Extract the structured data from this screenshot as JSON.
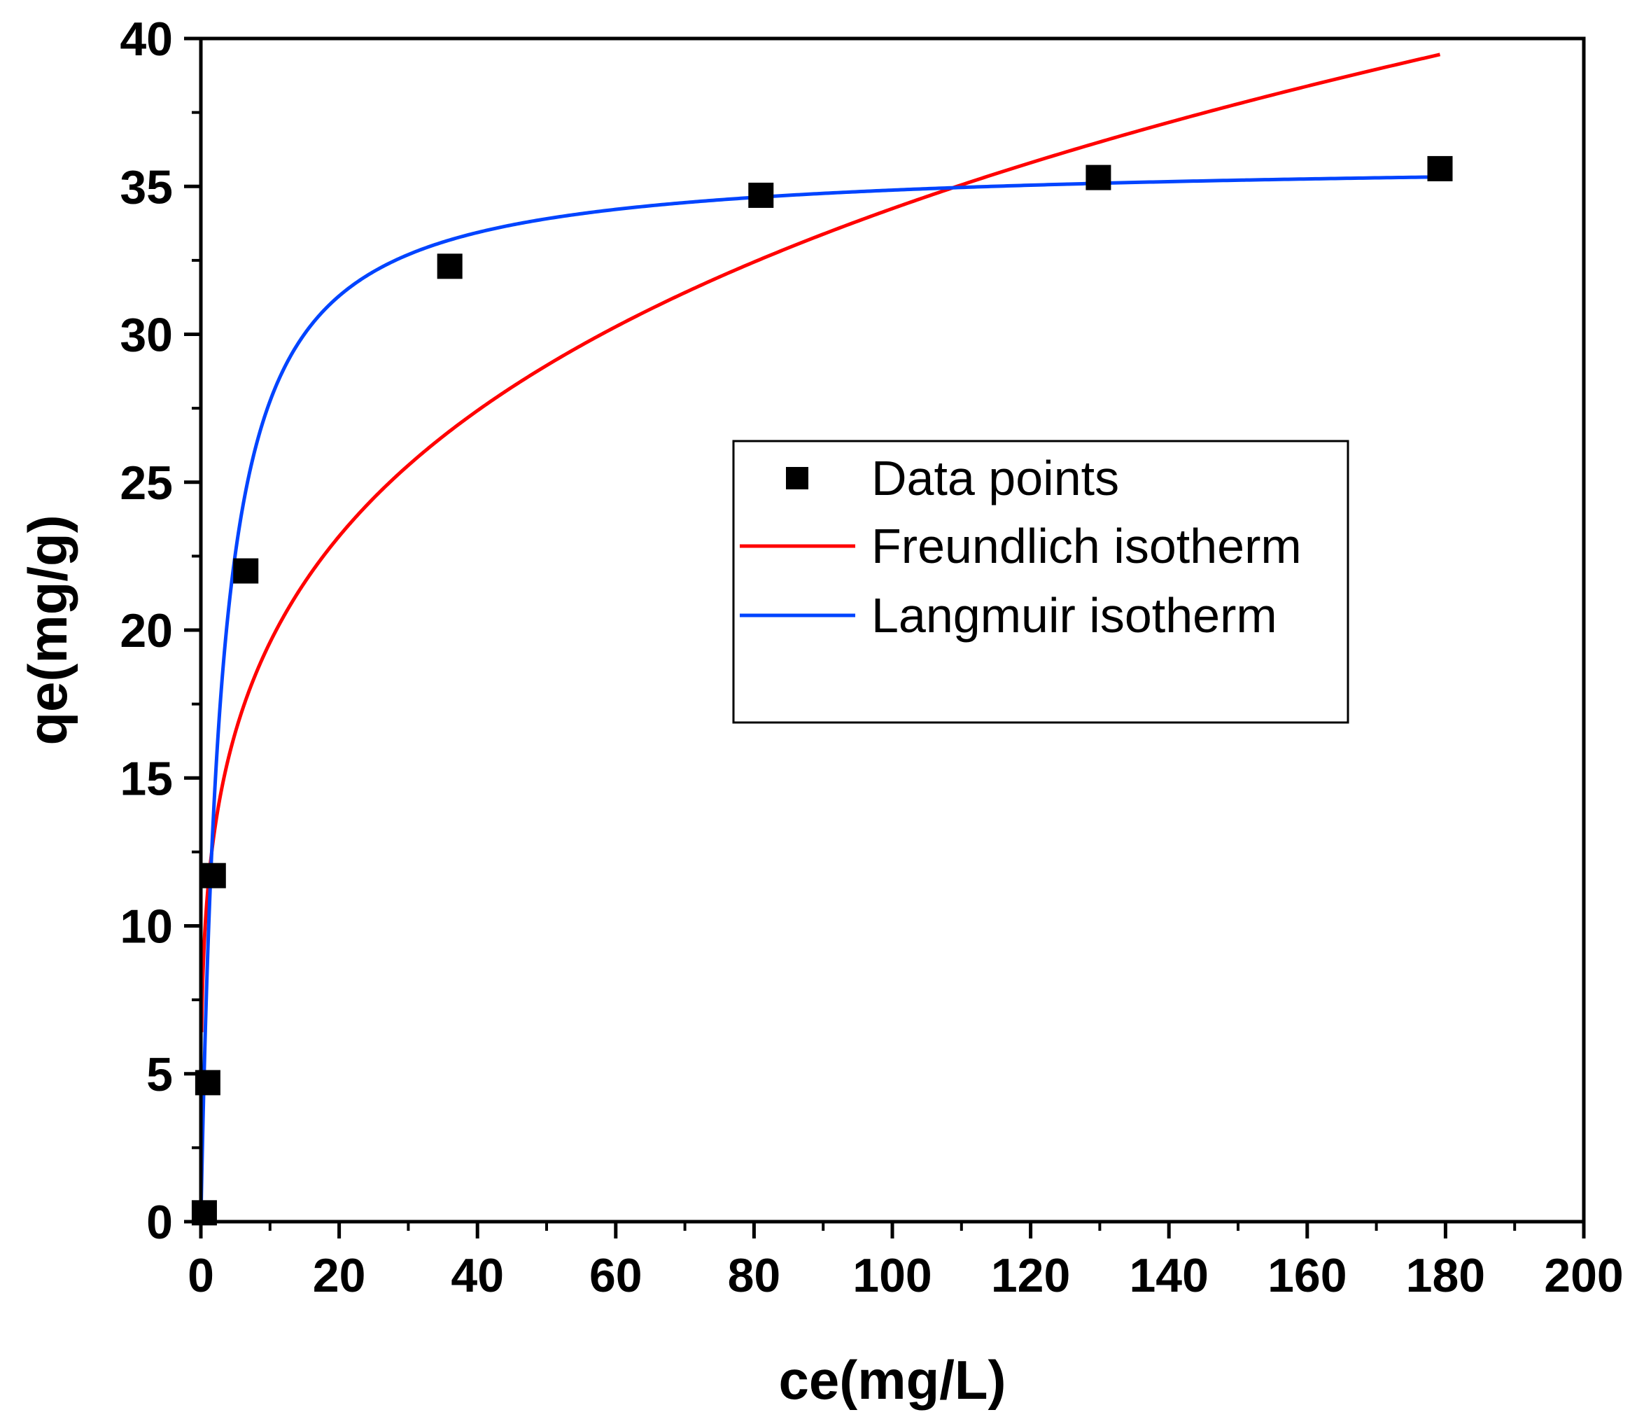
{
  "chart_data": {
    "type": "scatter",
    "xlabel": "ce(mg/L)",
    "ylabel": "qe(mg/g)",
    "xlim": [
      0,
      200
    ],
    "ylim": [
      0,
      40
    ],
    "x_ticks": [
      "0",
      "20",
      "40",
      "60",
      "80",
      "100",
      "120",
      "140",
      "160",
      "180",
      "200"
    ],
    "y_ticks": [
      "0",
      "5",
      "10",
      "15",
      "20",
      "25",
      "30",
      "35",
      "40"
    ],
    "grid": false,
    "legend_position": "center-right",
    "series": [
      {
        "name": "Data points",
        "kind": "scatter",
        "marker": "square",
        "color": "#000000",
        "points": [
          {
            "x": 0.5,
            "y": 0.3
          },
          {
            "x": 1.0,
            "y": 4.7
          },
          {
            "x": 1.8,
            "y": 11.7
          },
          {
            "x": 6.5,
            "y": 22.0
          },
          {
            "x": 36.0,
            "y": 32.3
          },
          {
            "x": 81.0,
            "y": 34.7
          },
          {
            "x": 129.8,
            "y": 35.3
          },
          {
            "x": 179.2,
            "y": 35.6
          }
        ]
      },
      {
        "name": "Freundlich isotherm",
        "kind": "line",
        "color": "#ff0000",
        "model": "freundlich",
        "params": {
          "kf": 11.2,
          "n": 4.12
        },
        "x_range": [
          0.1,
          179.2
        ]
      },
      {
        "name": "Langmuir isotherm",
        "kind": "line",
        "color": "#0044ff",
        "model": "langmuir",
        "params": {
          "qm": 35.9,
          "kl": 0.34
        },
        "x_range": [
          0.0,
          179.2
        ]
      }
    ]
  }
}
